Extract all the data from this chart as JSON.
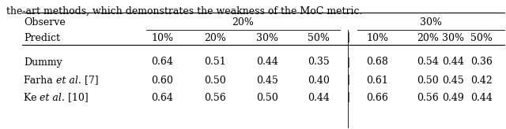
{
  "caption": "the-art methods, which demonstrates the weakness of the MoC metric.",
  "header_row1_left": "Observe",
  "header_20": "20%",
  "header_30": "30%",
  "header_row2": [
    "Predict",
    "10%",
    "20%",
    "30%",
    "50%",
    "10%",
    "20%",
    "30%",
    "50%"
  ],
  "rows": [
    [
      "Dummy",
      "0.64",
      "0.51",
      "0.44",
      "0.35",
      "0.68",
      "0.54",
      "0.44",
      "0.36"
    ],
    [
      "Farha",
      "et al.",
      " [7]",
      "0.60",
      "0.50",
      "0.45",
      "0.40",
      "0.61",
      "0.50",
      "0.45",
      "0.42"
    ],
    [
      "Ke",
      "et al.",
      " [10]",
      "0.64",
      "0.56",
      "0.50",
      "0.44",
      "0.66",
      "0.56",
      "0.49",
      "0.44"
    ]
  ],
  "bg_color": "#ffffff",
  "font_size": 9.0,
  "fig_width": 6.4,
  "fig_height": 1.64,
  "dpi": 100
}
